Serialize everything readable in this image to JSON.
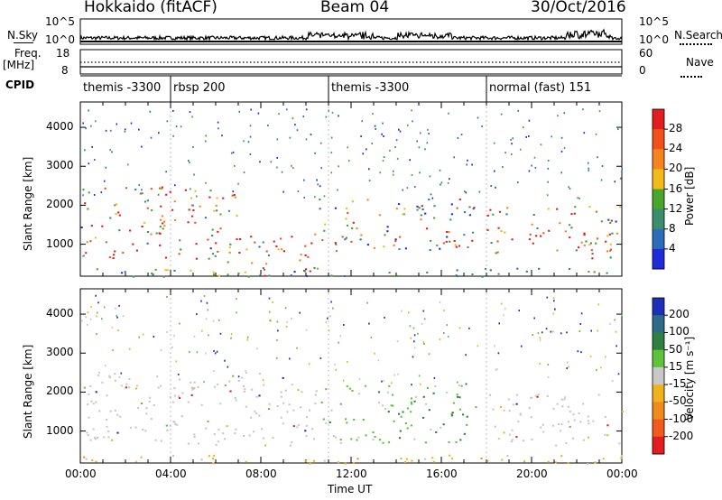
{
  "header": {
    "station": "Hokkaido (fitACF)",
    "beam": "Beam 04",
    "date": "30/Oct/2016"
  },
  "top_panels": {
    "nsky_label": "N.Sky",
    "nsearch_label": "N.Search",
    "left_ticks": [
      "10^5",
      "10^0"
    ],
    "right_ticks": [
      "10^5",
      "10^0"
    ],
    "freq_label": "Freq.",
    "freq_unit": "[MHz]",
    "freq_ticks_left": [
      "18",
      "8"
    ],
    "nave_ticks_right": [
      "60",
      "0"
    ],
    "nave_label": "Nave",
    "cpid_label": "CPID"
  },
  "cpid": [
    {
      "label": "themis -3300",
      "start_h": 0.0
    },
    {
      "label": "rbsp 200",
      "start_h": 4.0
    },
    {
      "label": "themis -3300",
      "start_h": 11.0
    },
    {
      "label": "normal (fast) 151",
      "start_h": 18.0
    }
  ],
  "power_panel": {
    "ylabel": "Slant Range [km]",
    "cbar_title": "Power [dB]",
    "cbar_labels": [
      "28",
      "24",
      "20",
      "16",
      "12",
      "8",
      "4"
    ],
    "cbar_colors": [
      "#e11d1d",
      "#f2501a",
      "#f7831f",
      "#f4b91b",
      "#4aa52d",
      "#3c8c6e",
      "#2b6db8",
      "#1f2bd8"
    ]
  },
  "velocity_panel": {
    "ylabel": "Slant Range [km]",
    "cbar_title": "Velocity [m s⁻¹]",
    "cbar_labels": [
      "200",
      "100",
      "50",
      "15",
      "-15",
      "-50",
      "-100",
      "-200"
    ],
    "cbar_colors": [
      "#1b2fb8",
      "#2e6a8a",
      "#2f7f3e",
      "#5fc33a",
      "#c8c8c8",
      "#f1b31d",
      "#f18a1d",
      "#f15a1d",
      "#e11d1d"
    ]
  },
  "axes": {
    "y_ticks": [
      "4000",
      "3000",
      "2000",
      "1000"
    ],
    "x_ticks": [
      "00:00",
      "04:00",
      "08:00",
      "12:00",
      "16:00",
      "20:00",
      "00:00"
    ],
    "xlabel": "Time UT"
  },
  "chart_data": {
    "type": "heatmap",
    "x_unit": "hours UT",
    "x_range": [
      0,
      24
    ],
    "y_range_km": [
      180,
      4650
    ],
    "power_scatter_bands": [
      {
        "x": [
          0.0,
          7.0
        ],
        "y": [
          650,
          2500
        ],
        "level": "high"
      },
      {
        "x": [
          6.5,
          10.5
        ],
        "y": [
          180,
          1300
        ],
        "level": "high"
      },
      {
        "x": [
          10.5,
          17.5
        ],
        "y": [
          800,
          2200
        ],
        "level": "mixed"
      },
      {
        "x": [
          18.0,
          24.0
        ],
        "y": [
          650,
          2000
        ],
        "level": "high"
      },
      {
        "x": [
          0.0,
          24.0
        ],
        "y": [
          180,
          400
        ],
        "level": "low"
      }
    ],
    "velocity_scatter_bands": [
      {
        "x": [
          0.0,
          10.5
        ],
        "y": [
          650,
          2500
        ],
        "velocity": "low (-15 to 15)"
      },
      {
        "x": [
          10.5,
          17.5
        ],
        "y": [
          700,
          2200
        ],
        "velocity": "positive (15-50)"
      },
      {
        "x": [
          18.0,
          24.0
        ],
        "y": [
          650,
          2000
        ],
        "velocity": "low (-15 to 15)"
      },
      {
        "x": [
          0.0,
          24.0
        ],
        "y": [
          180,
          400
        ],
        "velocity": "negative (-50 to -15)"
      }
    ]
  }
}
